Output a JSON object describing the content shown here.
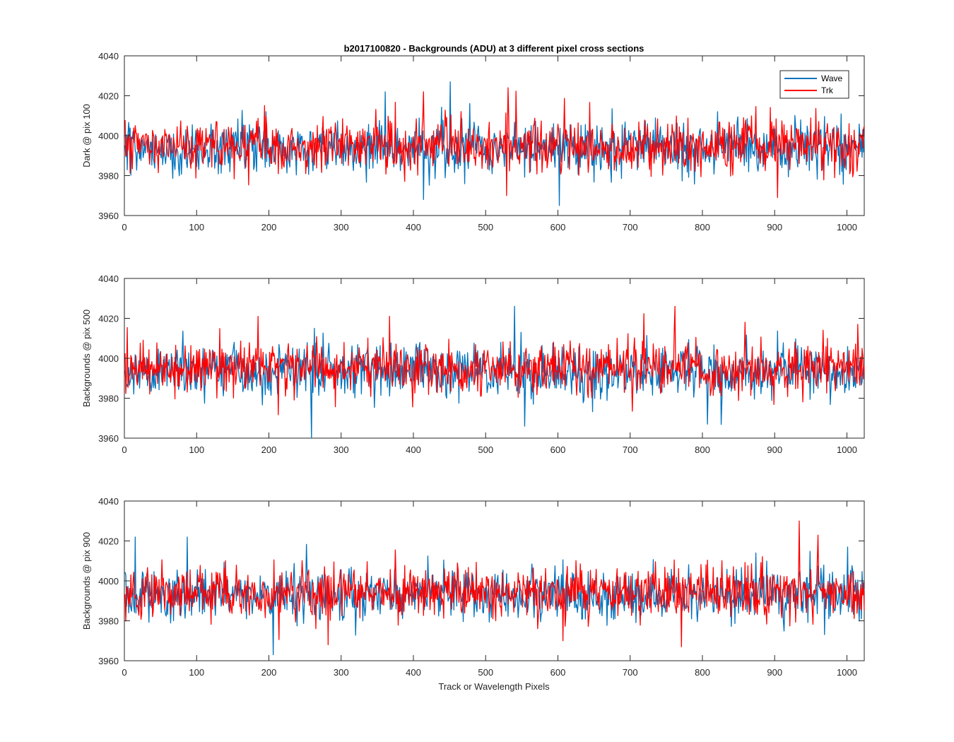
{
  "colors": {
    "wave": "#0072BD",
    "trk": "#FF0000",
    "axes": "#262626"
  },
  "chart_data": [
    {
      "type": "line",
      "title": "b2017100820 - Backgrounds (ADU) at 3 different pixel cross sections",
      "xlabel": "",
      "ylabel": "Dark @ pix 100",
      "xlim": [
        0,
        1024
      ],
      "ylim": [
        3960,
        4040
      ],
      "xticks": [
        0,
        100,
        200,
        300,
        400,
        500,
        600,
        700,
        800,
        900,
        1000
      ],
      "yticks": [
        3960,
        3980,
        4000,
        4020,
        4040
      ],
      "legend": {
        "placement": "top-right",
        "entries": [
          "Wave",
          "Trk"
        ]
      },
      "series": [
        {
          "name": "Wave",
          "color": "#0072BD",
          "points": 1024,
          "mean": 3994,
          "std": 6.5,
          "seed": 101,
          "extremes": [
            [
              450,
              4027
            ],
            [
              601,
              3965
            ],
            [
              360,
              4022
            ],
            [
              413,
              3968
            ]
          ]
        },
        {
          "name": "Trk",
          "color": "#FF0000",
          "points": 1024,
          "mean": 3995,
          "std": 6.5,
          "seed": 202,
          "extremes": [
            [
              413,
              4022
            ],
            [
              530,
              4024
            ],
            [
              528,
              3970
            ],
            [
              903,
              3969
            ]
          ]
        }
      ]
    },
    {
      "type": "line",
      "title": "",
      "xlabel": "",
      "ylabel": "Backgrounds @ pix 500",
      "xlim": [
        0,
        1024
      ],
      "ylim": [
        3960,
        4040
      ],
      "xticks": [
        0,
        100,
        200,
        300,
        400,
        500,
        600,
        700,
        800,
        900,
        1000
      ],
      "yticks": [
        3960,
        3980,
        4000,
        4020,
        4040
      ],
      "series": [
        {
          "name": "Wave",
          "color": "#0072BD",
          "points": 1024,
          "mean": 3993,
          "std": 6.5,
          "seed": 303,
          "extremes": [
            [
              258,
              3960
            ],
            [
              539,
              4026
            ],
            [
              553,
              3966
            ],
            [
              806,
              3967
            ]
          ]
        },
        {
          "name": "Trk",
          "color": "#FF0000",
          "points": 1024,
          "mean": 3995,
          "std": 6.5,
          "seed": 404,
          "extremes": [
            [
              761,
              4026
            ],
            [
              184,
              4021
            ],
            [
              366,
              4021
            ],
            [
              1014,
              4017
            ]
          ]
        }
      ]
    },
    {
      "type": "line",
      "title": "",
      "xlabel": "Track or Wavelength Pixels",
      "ylabel": "Backgrounds @ pix 900",
      "xlim": [
        0,
        1024
      ],
      "ylim": [
        3960,
        4040
      ],
      "xticks": [
        0,
        100,
        200,
        300,
        400,
        500,
        600,
        700,
        800,
        900,
        1000
      ],
      "yticks": [
        3960,
        3980,
        4000,
        4020,
        4040
      ],
      "series": [
        {
          "name": "Wave",
          "color": "#0072BD",
          "points": 1024,
          "mean": 3993,
          "std": 6.5,
          "seed": 505,
          "extremes": [
            [
              14,
              4022
            ],
            [
              86,
              4022
            ],
            [
              205,
              3963
            ],
            [
              1000,
              4017
            ]
          ]
        },
        {
          "name": "Trk",
          "color": "#FF0000",
          "points": 1024,
          "mean": 3994,
          "std": 6.5,
          "seed": 606,
          "extremes": [
            [
              933,
              4030
            ],
            [
              770,
              3967
            ],
            [
              281,
              3968
            ],
            [
              606,
              3970
            ]
          ]
        }
      ]
    }
  ]
}
